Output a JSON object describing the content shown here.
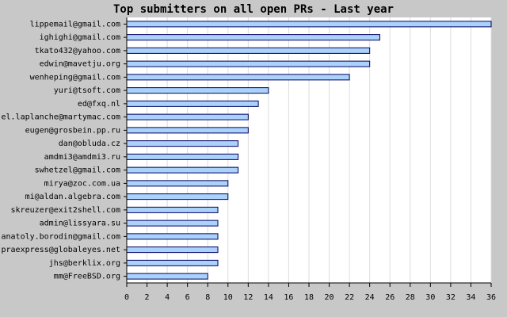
{
  "chart_data": {
    "type": "barh",
    "title": "Top submitters on all open PRs - Last year",
    "categories": [
      "lippemail@gmail.com",
      "ighighi@gmail.com",
      "tkato432@yahoo.com",
      "edwin@mavetju.org",
      "wenheping@gmail.com",
      "yuri@tsoft.com",
      "ed@fxq.nl",
      "el.laplanche@martymac.com",
      "eugen@grosbein.pp.ru",
      "dan@obluda.cz",
      "amdmi3@amdmi3.ru",
      "swhetzel@gmail.com",
      "mirya@zoc.com.ua",
      "mi@aldan.algebra.com",
      "skreuzer@exit2shell.com",
      "admin@lissyara.su",
      "anatoly.borodin@gmail.com",
      "praexpress@globaleyes.net",
      "jhs@berklix.org",
      "mm@FreeBSD.org"
    ],
    "values": [
      36,
      25,
      24,
      24,
      22,
      14,
      13,
      12,
      12,
      11,
      11,
      11,
      10,
      10,
      9,
      9,
      9,
      9,
      9,
      8
    ],
    "color": "#aad2fa",
    "xlim": [
      0,
      36
    ],
    "xticks": [
      0,
      2,
      4,
      6,
      8,
      10,
      12,
      14,
      16,
      18,
      20,
      22,
      24,
      26,
      28,
      30,
      32,
      34,
      36
    ],
    "grid": true
  }
}
